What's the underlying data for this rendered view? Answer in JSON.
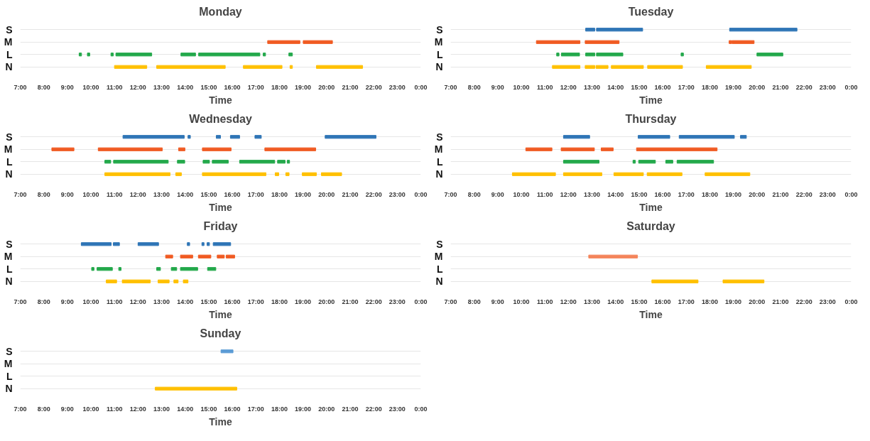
{
  "chart_data": [
    {
      "type": "bar",
      "orientation": "horizontal",
      "title": "Monday",
      "xlabel": "Time",
      "categories": [
        "S",
        "M",
        "L",
        "N"
      ],
      "xlim": [
        7,
        24
      ],
      "xticks": [
        {
          "value": 7,
          "label": "7:00"
        },
        {
          "value": 8,
          "label": "8:00"
        },
        {
          "value": 9,
          "label": "9:00"
        },
        {
          "value": 10,
          "label": "10:00"
        },
        {
          "value": 11,
          "label": "11:00"
        },
        {
          "value": 12,
          "label": "12:00"
        },
        {
          "value": 13,
          "label": "13:00"
        },
        {
          "value": 14,
          "label": "14:00"
        },
        {
          "value": 15,
          "label": "15:00"
        },
        {
          "value": 16,
          "label": "16:00"
        },
        {
          "value": 17,
          "label": "17:00"
        },
        {
          "value": 18,
          "label": "18:00"
        },
        {
          "value": 19,
          "label": "19:00"
        },
        {
          "value": 20,
          "label": "20:00"
        },
        {
          "value": 21,
          "label": "21:00"
        },
        {
          "value": 22,
          "label": "22:00"
        },
        {
          "value": 23,
          "label": "23:00"
        },
        {
          "value": 24,
          "label": "0:00"
        }
      ],
      "grid": "y",
      "series": [
        {
          "colors": [
            "#2e75b6",
            "#f05a22",
            "#22a84a",
            "#ffc000"
          ],
          "values": [
            null,
            1.37,
            0.1,
            1.37
          ],
          "base": [
            null,
            17.5,
            9.5,
            11.0
          ]
        },
        {
          "colors": [
            "#2e75b6",
            "#f05a22",
            "#22a84a",
            "#ffc000"
          ],
          "values": [
            null,
            1.24,
            0.1,
            2.91
          ],
          "base": [
            null,
            19.01,
            9.85,
            12.79
          ]
        },
        {
          "colors": [
            "#2e75b6",
            "#f05a22",
            "#22a84a",
            "#ffc000"
          ],
          "values": [
            null,
            null,
            0.1,
            1.64
          ],
          "base": [
            null,
            null,
            10.85,
            16.47
          ]
        },
        {
          "colors": [
            "#2e75b6",
            "#f05a22",
            "#22a84a",
            "#ffc000"
          ],
          "values": [
            null,
            null,
            1.52,
            0.1
          ],
          "base": [
            null,
            null,
            11.06,
            18.45
          ]
        },
        {
          "colors": [
            "#2e75b6",
            "#f05a22",
            "#22a84a",
            "#ffc000"
          ],
          "values": [
            null,
            null,
            0.62,
            1.96
          ],
          "base": [
            null,
            null,
            13.82,
            19.57
          ]
        },
        {
          "colors": [
            "#2e75b6",
            "#f05a22",
            "#22a84a",
            "#ffc000"
          ],
          "values": [
            null,
            null,
            2.6,
            null
          ],
          "base": [
            null,
            null,
            14.57,
            null
          ]
        },
        {
          "colors": [
            "#2e75b6",
            "#f05a22",
            "#22a84a",
            "#ffc000"
          ],
          "values": [
            null,
            null,
            0.1,
            null
          ],
          "base": [
            null,
            null,
            17.31,
            null
          ]
        },
        {
          "colors": [
            "#2e75b6",
            "#f05a22",
            "#22a84a",
            "#ffc000"
          ],
          "values": [
            null,
            null,
            0.15,
            null
          ],
          "base": [
            null,
            null,
            18.4,
            null
          ]
        }
      ]
    },
    {
      "type": "bar",
      "orientation": "horizontal",
      "title": "Tuesday",
      "xlabel": "Time",
      "categories": [
        "S",
        "M",
        "L",
        "N"
      ],
      "xlim": [
        7,
        24
      ],
      "xticks": [
        {
          "value": 7,
          "label": "7:00"
        },
        {
          "value": 8,
          "label": "8:00"
        },
        {
          "value": 9,
          "label": "9:00"
        },
        {
          "value": 10,
          "label": "10:00"
        },
        {
          "value": 11,
          "label": "11:00"
        },
        {
          "value": 12,
          "label": "12:00"
        },
        {
          "value": 13,
          "label": "13:00"
        },
        {
          "value": 14,
          "label": "14:00"
        },
        {
          "value": 15,
          "label": "15:00"
        },
        {
          "value": 16,
          "label": "16:00"
        },
        {
          "value": 17,
          "label": "17:00"
        },
        {
          "value": 18,
          "label": "18:00"
        },
        {
          "value": 19,
          "label": "19:00"
        },
        {
          "value": 20,
          "label": "20:00"
        },
        {
          "value": 21,
          "label": "21:00"
        },
        {
          "value": 22,
          "label": "22:00"
        },
        {
          "value": 23,
          "label": "23:00"
        },
        {
          "value": 24,
          "label": "0:00"
        }
      ],
      "grid": "y",
      "series": [
        {
          "colors": [
            "#2e75b6",
            "#f05a22",
            "#22a84a",
            "#ffc000"
          ],
          "values": [
            0.39,
            1.85,
            0.1,
            1.17
          ],
          "base": [
            12.73,
            10.64,
            11.5,
            11.32
          ]
        },
        {
          "colors": [
            "#2e75b6",
            "#f05a22",
            "#22a84a",
            "#ffc000"
          ],
          "values": [
            1.96,
            1.44,
            0.77,
            0.41
          ],
          "base": [
            13.19,
            12.71,
            11.7,
            12.71
          ]
        },
        {
          "colors": [
            "#2e75b6",
            "#f05a22",
            "#22a84a",
            "#ffc000"
          ],
          "values": [
            2.86,
            0.1,
            0.39,
            0.51
          ],
          "base": [
            18.84,
            18.82,
            12.73,
            13.17
          ]
        },
        {
          "colors": [
            "#2e75b6",
            "#f05a22",
            "#22a84a",
            "#ffc000"
          ],
          "values": [
            null,
            0.94,
            1.12,
            1.36
          ],
          "base": [
            null,
            18.94,
            13.19,
            13.82
          ]
        },
        {
          "colors": [
            "#2e75b6",
            "#f05a22",
            "#22a84a",
            "#ffc000"
          ],
          "values": [
            null,
            null,
            0.1,
            1.48
          ],
          "base": [
            null,
            null,
            16.78,
            15.36
          ]
        },
        {
          "colors": [
            "#2e75b6",
            "#f05a22",
            "#22a84a",
            "#ffc000"
          ],
          "values": [
            null,
            null,
            1.1,
            1.91
          ],
          "base": [
            null,
            null,
            20.0,
            17.85
          ]
        }
      ]
    },
    {
      "type": "bar",
      "orientation": "horizontal",
      "title": "Wednesday",
      "xlabel": "Time",
      "categories": [
        "S",
        "M",
        "L",
        "N"
      ],
      "xlim": [
        7,
        24
      ],
      "xticks": [
        {
          "value": 7,
          "label": "7:00"
        },
        {
          "value": 8,
          "label": "8:00"
        },
        {
          "value": 9,
          "label": "9:00"
        },
        {
          "value": 10,
          "label": "10:00"
        },
        {
          "value": 11,
          "label": "11:00"
        },
        {
          "value": 12,
          "label": "12:00"
        },
        {
          "value": 13,
          "label": "13:00"
        },
        {
          "value": 14,
          "label": "14:00"
        },
        {
          "value": 15,
          "label": "15:00"
        },
        {
          "value": 16,
          "label": "16:00"
        },
        {
          "value": 17,
          "label": "17:00"
        },
        {
          "value": 18,
          "label": "18:00"
        },
        {
          "value": 19,
          "label": "19:00"
        },
        {
          "value": 20,
          "label": "20:00"
        },
        {
          "value": 21,
          "label": "21:00"
        },
        {
          "value": 22,
          "label": "22:00"
        },
        {
          "value": 23,
          "label": "23:00"
        },
        {
          "value": 24,
          "label": "0:00"
        }
      ],
      "grid": "y",
      "series": [
        {
          "colors": [
            "#2e75b6",
            "#f05a22",
            "#22a84a",
            "#ffc000"
          ],
          "values": [
            2.6,
            0.94,
            0.25,
            2.77
          ],
          "base": [
            11.36,
            8.34,
            10.59,
            10.59
          ]
        },
        {
          "colors": [
            "#2e75b6",
            "#f05a22",
            "#22a84a",
            "#ffc000"
          ],
          "values": [
            0.1,
            2.72,
            2.32,
            0.24
          ],
          "base": [
            14.12,
            10.31,
            10.96,
            13.6
          ]
        },
        {
          "colors": [
            "#2e75b6",
            "#f05a22",
            "#22a84a",
            "#ffc000"
          ],
          "values": [
            0.18,
            0.27,
            0.31,
            2.7
          ],
          "base": [
            15.32,
            13.72,
            13.67,
            14.73
          ]
        },
        {
          "colors": [
            "#2e75b6",
            "#f05a22",
            "#22a84a",
            "#ffc000"
          ],
          "values": [
            0.39,
            1.22,
            0.27,
            0.15
          ],
          "base": [
            15.92,
            14.73,
            14.76,
            17.82
          ]
        },
        {
          "colors": [
            "#2e75b6",
            "#f05a22",
            "#22a84a",
            "#ffc000"
          ],
          "values": [
            0.27,
            2.16,
            0.68,
            0.14
          ],
          "base": [
            16.96,
            17.38,
            15.15,
            18.27
          ]
        },
        {
          "colors": [
            "#2e75b6",
            "#f05a22",
            "#22a84a",
            "#ffc000"
          ],
          "values": [
            2.16,
            null,
            1.49,
            0.6
          ],
          "base": [
            19.94,
            null,
            16.31,
            18.97
          ]
        },
        {
          "colors": [
            "#2e75b6",
            "#f05a22",
            "#22a84a",
            "#ffc000"
          ],
          "values": [
            null,
            null,
            0.32,
            0.86
          ],
          "base": [
            null,
            null,
            17.92,
            19.78
          ]
        },
        {
          "colors": [
            "#2e75b6",
            "#f05a22",
            "#22a84a",
            "#ffc000"
          ],
          "values": [
            null,
            null,
            0.1,
            null
          ],
          "base": [
            null,
            null,
            18.33,
            null
          ]
        }
      ]
    },
    {
      "type": "bar",
      "orientation": "horizontal",
      "title": "Thursday",
      "xlabel": "Time",
      "categories": [
        "S",
        "M",
        "L",
        "N"
      ],
      "xlim": [
        7,
        24
      ],
      "xticks": [
        {
          "value": 7,
          "label": "7:00"
        },
        {
          "value": 8,
          "label": "8:00"
        },
        {
          "value": 9,
          "label": "9:00"
        },
        {
          "value": 10,
          "label": "10:00"
        },
        {
          "value": 11,
          "label": "11:00"
        },
        {
          "value": 12,
          "label": "12:00"
        },
        {
          "value": 13,
          "label": "13:00"
        },
        {
          "value": 14,
          "label": "14:00"
        },
        {
          "value": 15,
          "label": "15:00"
        },
        {
          "value": 16,
          "label": "16:00"
        },
        {
          "value": 17,
          "label": "17:00"
        },
        {
          "value": 18,
          "label": "18:00"
        },
        {
          "value": 19,
          "label": "19:00"
        },
        {
          "value": 20,
          "label": "20:00"
        },
        {
          "value": 21,
          "label": "21:00"
        },
        {
          "value": 22,
          "label": "22:00"
        },
        {
          "value": 23,
          "label": "23:00"
        },
        {
          "value": 24,
          "label": "0:00"
        }
      ],
      "grid": "y",
      "series": [
        {
          "colors": [
            "#2e75b6",
            "#f05a22",
            "#22a84a",
            "#ffc000"
          ],
          "values": [
            1.11,
            1.11,
            1.51,
            1.83
          ],
          "base": [
            11.79,
            10.19,
            11.79,
            9.62
          ]
        },
        {
          "colors": [
            "#2e75b6",
            "#f05a22",
            "#22a84a",
            "#ffc000"
          ],
          "values": [
            1.34,
            1.41,
            0.1,
            1.63
          ],
          "base": [
            14.96,
            11.69,
            14.74,
            11.79
          ]
        },
        {
          "colors": [
            "#2e75b6",
            "#f05a22",
            "#22a84a",
            "#ffc000"
          ],
          "values": [
            2.34,
            0.51,
            0.71,
            1.25
          ],
          "base": [
            16.7,
            13.39,
            14.98,
            13.93
          ]
        },
        {
          "colors": [
            "#2e75b6",
            "#f05a22",
            "#22a84a",
            "#ffc000"
          ],
          "values": [
            0.25,
            3.42,
            0.3,
            1.48
          ],
          "base": [
            19.3,
            14.89,
            16.13,
            15.34
          ]
        },
        {
          "colors": [
            "#2e75b6",
            "#f05a22",
            "#22a84a",
            "#ffc000"
          ],
          "values": [
            null,
            null,
            1.55,
            1.9
          ],
          "base": [
            null,
            null,
            16.61,
            17.8
          ]
        }
      ]
    },
    {
      "type": "bar",
      "orientation": "horizontal",
      "title": "Friday",
      "xlabel": "Time",
      "categories": [
        "S",
        "M",
        "L",
        "N"
      ],
      "xlim": [
        7,
        24
      ],
      "xticks": [
        {
          "value": 7,
          "label": "7:00"
        },
        {
          "value": 8,
          "label": "8:00"
        },
        {
          "value": 9,
          "label": "9:00"
        },
        {
          "value": 10,
          "label": "10:00"
        },
        {
          "value": 11,
          "label": "11:00"
        },
        {
          "value": 12,
          "label": "12:00"
        },
        {
          "value": 13,
          "label": "13:00"
        },
        {
          "value": 14,
          "label": "14:00"
        },
        {
          "value": 15,
          "label": "15:00"
        },
        {
          "value": 16,
          "label": "16:00"
        },
        {
          "value": 17,
          "label": "17:00"
        },
        {
          "value": 18,
          "label": "18:00"
        },
        {
          "value": 19,
          "label": "19:00"
        },
        {
          "value": 20,
          "label": "20:00"
        },
        {
          "value": 21,
          "label": "21:00"
        },
        {
          "value": 22,
          "label": "22:00"
        },
        {
          "value": 23,
          "label": "23:00"
        },
        {
          "value": 24,
          "label": "0:00"
        }
      ],
      "grid": "y",
      "series": [
        {
          "colors": [
            "#2e75b6",
            "#f05a22",
            "#22a84a",
            "#ffc000"
          ],
          "values": [
            1.27,
            0.3,
            0.1,
            0.44
          ],
          "base": [
            9.59,
            13.17,
            10.03,
            10.65
          ]
        },
        {
          "colors": [
            "#2e75b6",
            "#f05a22",
            "#22a84a",
            "#ffc000"
          ],
          "values": [
            0.26,
            0.52,
            0.65,
            1.19
          ],
          "base": [
            10.95,
            13.8,
            10.26,
            11.33
          ]
        },
        {
          "colors": [
            "#2e75b6",
            "#f05a22",
            "#22a84a",
            "#ffc000"
          ],
          "values": [
            0.87,
            0.53,
            0.1,
            0.47
          ],
          "base": [
            12.0,
            14.56,
            11.18,
            12.85
          ]
        },
        {
          "colors": [
            "#2e75b6",
            "#f05a22",
            "#22a84a",
            "#ffc000"
          ],
          "values": [
            0.1,
            0.3,
            0.16,
            0.18
          ],
          "base": [
            14.09,
            15.36,
            12.79,
            13.52
          ]
        },
        {
          "colors": [
            "#2e75b6",
            "#f05a22",
            "#22a84a",
            "#ffc000"
          ],
          "values": [
            0.09,
            0.36,
            0.23,
            0.2
          ],
          "base": [
            14.71,
            15.74,
            13.41,
            13.92
          ]
        },
        {
          "colors": [
            "#2e75b6",
            "#f05a22",
            "#22a84a",
            "#ffc000"
          ],
          "values": [
            0.1,
            null,
            0.73,
            null
          ],
          "base": [
            14.93,
            null,
            13.8,
            null
          ]
        },
        {
          "colors": [
            "#2e75b6",
            "#f05a22",
            "#22a84a",
            "#ffc000"
          ],
          "values": [
            0.74,
            null,
            0.35,
            null
          ],
          "base": [
            15.19,
            null,
            14.95,
            null
          ]
        }
      ]
    },
    {
      "type": "bar",
      "orientation": "horizontal",
      "title": "Saturday",
      "xlabel": "Time",
      "categories": [
        "S",
        "M",
        "L",
        "N"
      ],
      "xlim": [
        7,
        24
      ],
      "xticks": [
        {
          "value": 7,
          "label": "7:00"
        },
        {
          "value": 8,
          "label": "8:00"
        },
        {
          "value": 9,
          "label": "9:00"
        },
        {
          "value": 10,
          "label": "10:00"
        },
        {
          "value": 11,
          "label": "11:00"
        },
        {
          "value": 12,
          "label": "12:00"
        },
        {
          "value": 13,
          "label": "13:00"
        },
        {
          "value": 14,
          "label": "14:00"
        },
        {
          "value": 15,
          "label": "15:00"
        },
        {
          "value": 16,
          "label": "16:00"
        },
        {
          "value": 17,
          "label": "17:00"
        },
        {
          "value": 18,
          "label": "18:00"
        },
        {
          "value": 19,
          "label": "19:00"
        },
        {
          "value": 20,
          "label": "20:00"
        },
        {
          "value": 21,
          "label": "21:00"
        },
        {
          "value": 22,
          "label": "22:00"
        },
        {
          "value": 23,
          "label": "23:00"
        },
        {
          "value": 24,
          "label": "0:00"
        }
      ],
      "grid": "y",
      "series": [
        {
          "colors": [
            "#2e75b6",
            "#f4845a",
            "#22a84a",
            "#ffc000"
          ],
          "values": [
            null,
            2.07,
            null,
            1.96
          ],
          "base": [
            null,
            12.86,
            null,
            15.54
          ]
        },
        {
          "colors": [
            "#2e75b6",
            "#f4845a",
            "#22a84a",
            "#ffc000"
          ],
          "values": [
            null,
            null,
            null,
            1.74
          ],
          "base": [
            null,
            null,
            null,
            18.56
          ]
        }
      ]
    },
    {
      "type": "bar",
      "orientation": "horizontal",
      "title": "Sunday",
      "xlabel": "Time",
      "categories": [
        "S",
        "M",
        "L",
        "N"
      ],
      "xlim": [
        7,
        24
      ],
      "xticks": [
        {
          "value": 7,
          "label": "7:00"
        },
        {
          "value": 8,
          "label": "8:00"
        },
        {
          "value": 9,
          "label": "9:00"
        },
        {
          "value": 10,
          "label": "10:00"
        },
        {
          "value": 11,
          "label": "11:00"
        },
        {
          "value": 12,
          "label": "12:00"
        },
        {
          "value": 13,
          "label": "13:00"
        },
        {
          "value": 14,
          "label": "14:00"
        },
        {
          "value": 15,
          "label": "15:00"
        },
        {
          "value": 16,
          "label": "16:00"
        },
        {
          "value": 17,
          "label": "17:00"
        },
        {
          "value": 18,
          "label": "18:00"
        },
        {
          "value": 19,
          "label": "19:00"
        },
        {
          "value": 20,
          "label": "20:00"
        },
        {
          "value": 21,
          "label": "21:00"
        },
        {
          "value": 22,
          "label": "22:00"
        },
        {
          "value": 23,
          "label": "23:00"
        },
        {
          "value": 24,
          "label": "0:00"
        }
      ],
      "grid": "y",
      "series": [
        {
          "colors": [
            "#5b9bd5",
            "#f05a22",
            "#22a84a",
            "#ffc000"
          ],
          "values": [
            0.51,
            null,
            null,
            3.46
          ],
          "base": [
            15.52,
            null,
            null,
            12.73
          ]
        }
      ]
    }
  ]
}
